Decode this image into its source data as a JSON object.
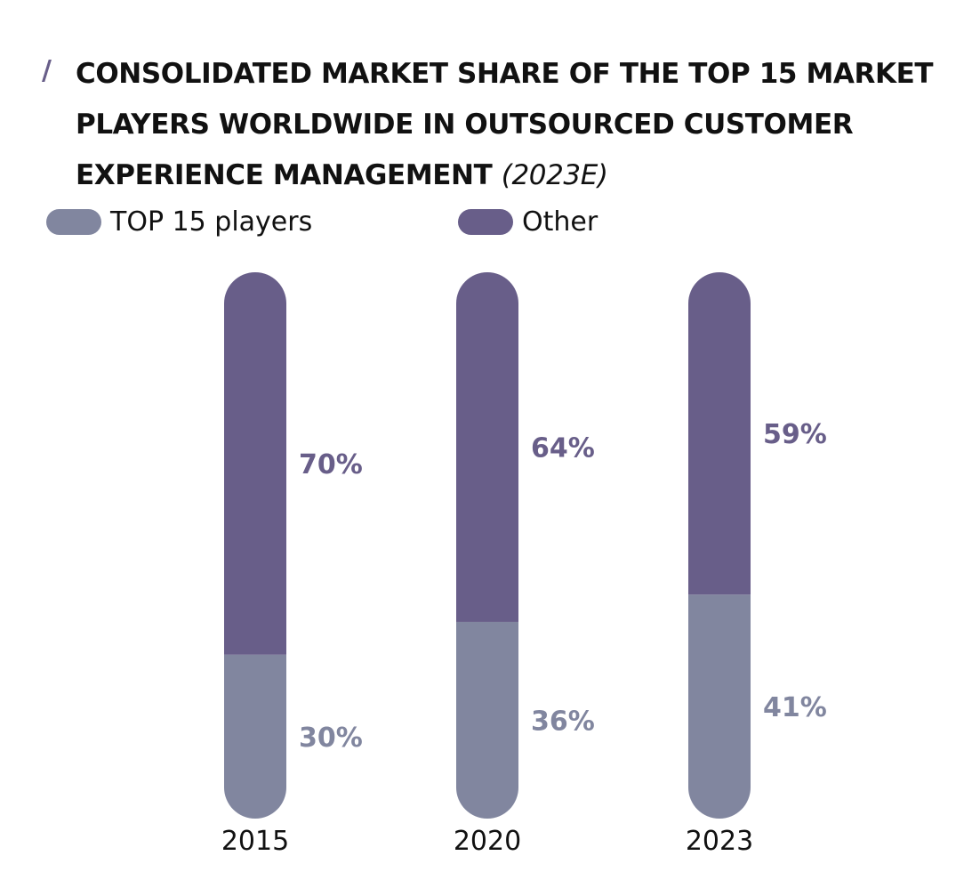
{
  "chart_data": {
    "type": "bar",
    "stacked": true,
    "title": "CONSOLIDATED MARKET SHARE OF THE TOP 15 MARKET PLAYERS WORLDWIDE IN OUTSOURCED CUSTOMER EXPERIENCE MANAGEMENT",
    "subtitle": "(2023E)",
    "categories": [
      "2015",
      "2020",
      "2023"
    ],
    "series": [
      {
        "name": "TOP 15 players",
        "values": [
          30,
          36,
          41
        ],
        "labels": [
          "30%",
          "36%",
          "41%"
        ],
        "color": "#81869f"
      },
      {
        "name": "Other",
        "values": [
          70,
          64,
          59
        ],
        "labels": [
          "70%",
          "64%",
          "59%"
        ],
        "color": "#685e89"
      }
    ],
    "ylim": [
      0,
      100
    ],
    "legend_position": "top-left",
    "grid": false
  },
  "colors": {
    "accent": "#685e89",
    "label_light": "#81869f"
  }
}
